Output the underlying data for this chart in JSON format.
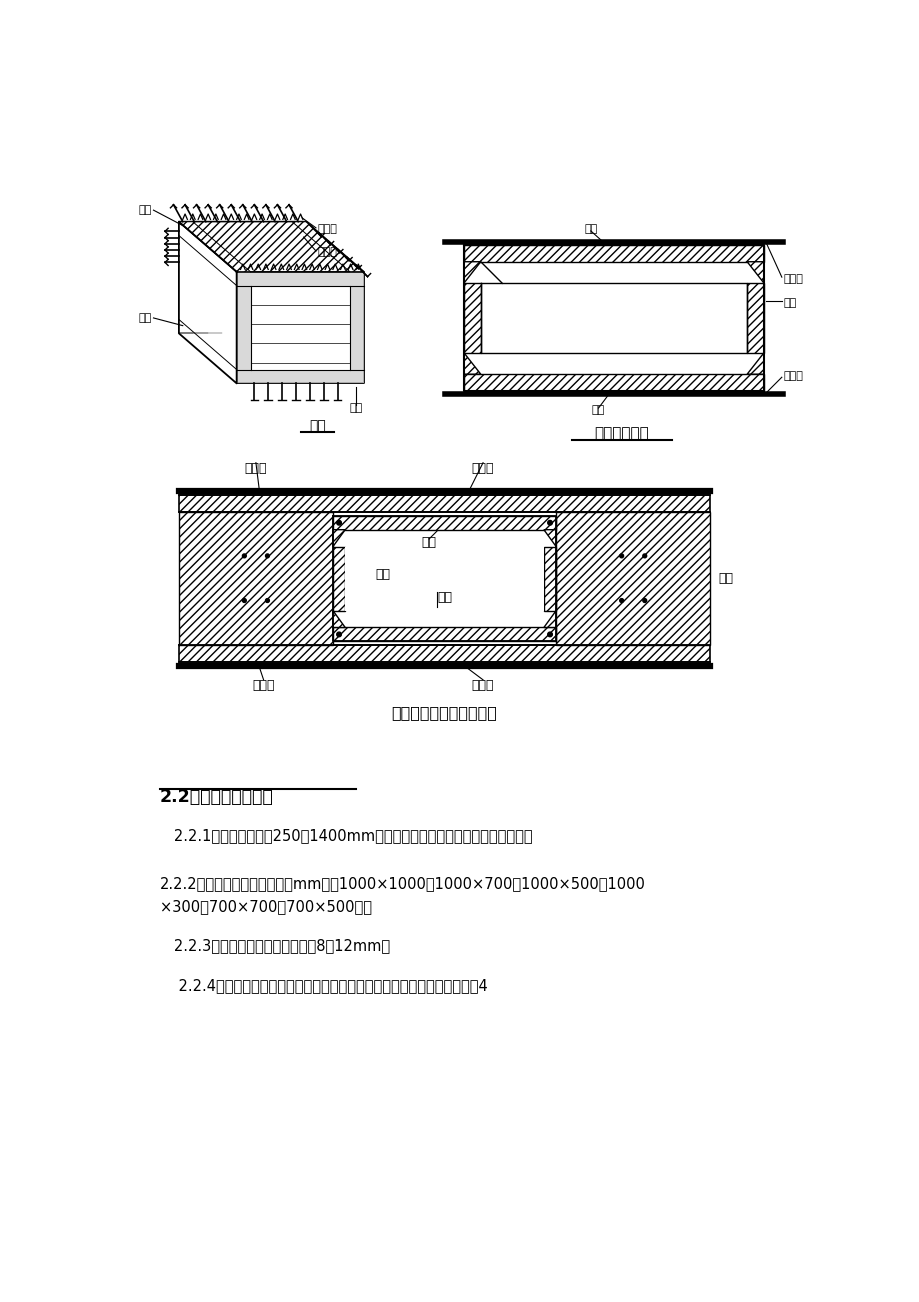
{
  "bg_color": "#ffffff",
  "page_width": 9.2,
  "page_height": 13.02,
  "title_section2": "2.2叠合箱旳基本形式",
  "caption1": "叠合箱示意图",
  "caption2": "叠合箱钢筋与肋梁筋连接",
  "text_221": "   2.2.1叠合箱旳高度在250～1400mm内任意调节，可根据不同状况进行选择。",
  "text_222_line1": "2.2.2叠合箱旳平面尺寸系列（mm）：1000×1000，1000×700，1000×500，1000",
  "text_222_line2": "×300，700×700，700×500等。",
  "text_223": "   2.2.3叠合箱侧壁为薄壁，厚度为8～12mm。",
  "text_224": "    2.2.4叠合箱顶板、底板厚度可按构造不同部位进行调节，顶板最小厚度为4"
}
